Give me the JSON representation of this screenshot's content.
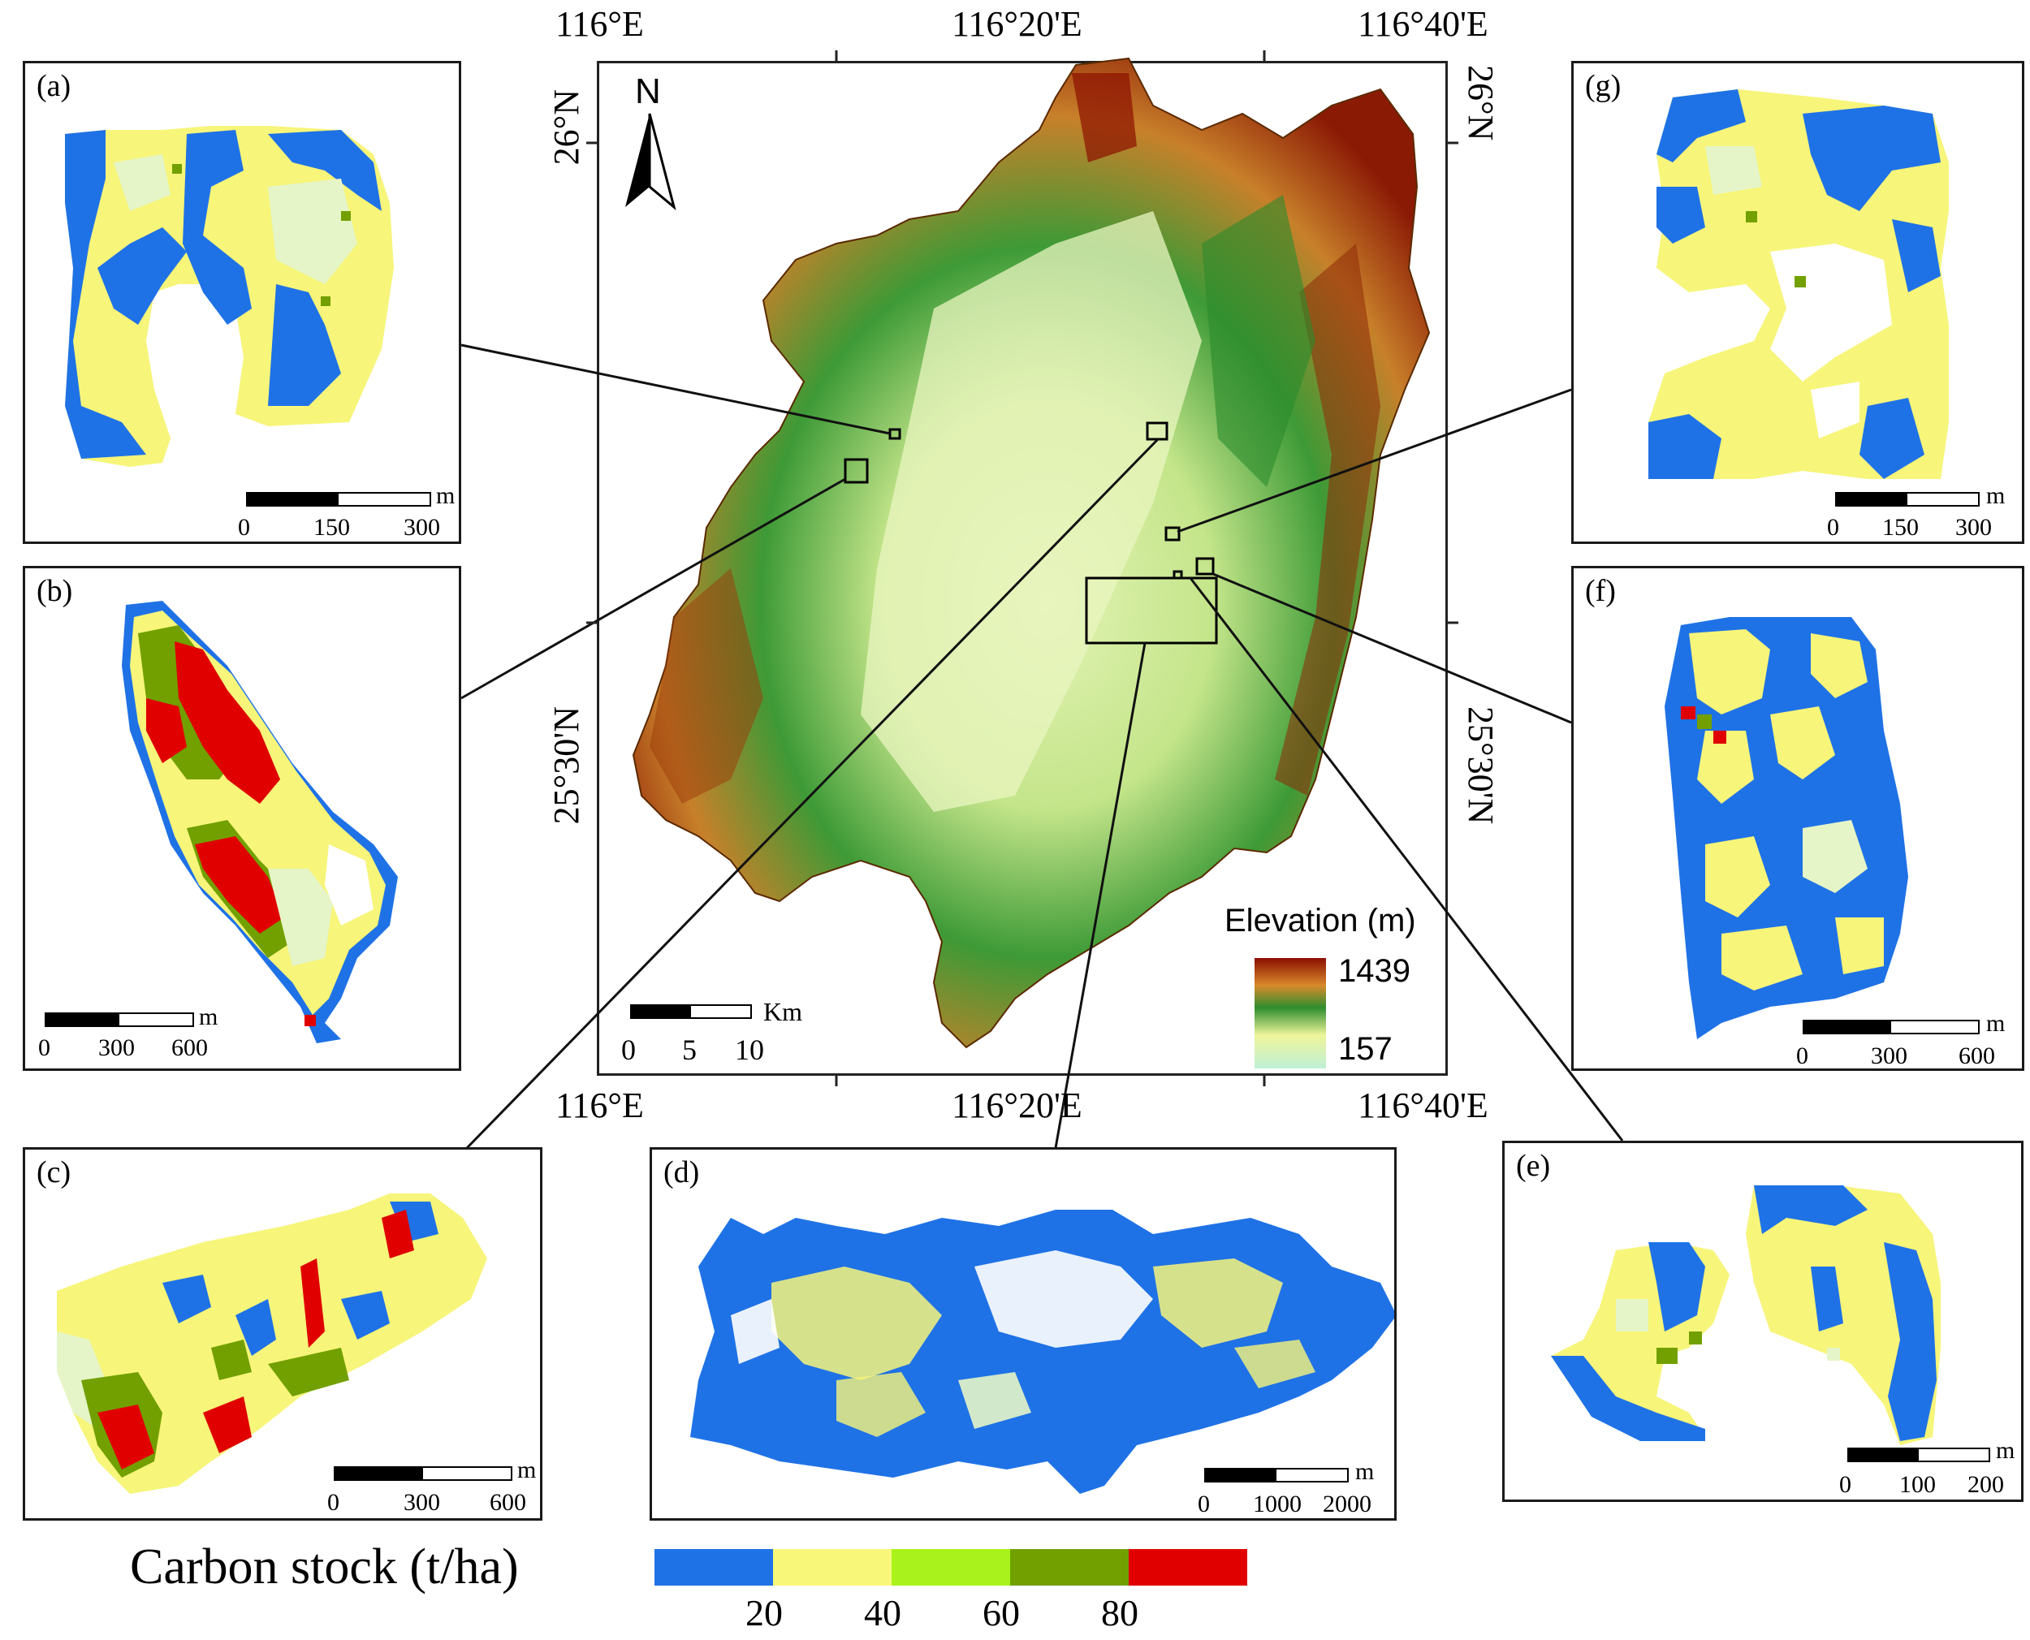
{
  "colors": {
    "class_20": "#1f72e6",
    "class_40": "#f8f77a",
    "class_60": "#a9f21c",
    "class_80": "#72a000",
    "class_top": "#e00000",
    "light": "#e9f6c4",
    "elev_high": "#8b0f00",
    "elev_mid": "#2a8f2a",
    "elev_low": "#bff0d6"
  },
  "main_map": {
    "top_labels": [
      "116°E",
      "116°20'E",
      "116°40'E"
    ],
    "bottom_labels": [
      "116°E",
      "116°20'E",
      "116°40'E"
    ],
    "left_labels": [
      "26°N",
      "25°30'N"
    ],
    "right_labels": [
      "26°N",
      "25°30'N"
    ],
    "north": "N",
    "scale_unit": "Km",
    "scale_ticks": [
      "0",
      "5",
      "10"
    ],
    "legend_title": "Elevation (m)",
    "legend_max": "1439",
    "legend_min": "157"
  },
  "panels": {
    "a": {
      "label": "(a)",
      "unit": "m",
      "ticks": [
        "0",
        "150",
        "300"
      ]
    },
    "b": {
      "label": "(b)",
      "unit": "m",
      "ticks": [
        "0",
        "300",
        "600"
      ]
    },
    "c": {
      "label": "(c)",
      "unit": "m",
      "ticks": [
        "0",
        "300",
        "600"
      ]
    },
    "d": {
      "label": "(d)",
      "unit": "m",
      "ticks": [
        "0",
        "1000",
        "2000"
      ]
    },
    "e": {
      "label": "(e)",
      "unit": "m",
      "ticks": [
        "0",
        "100",
        "200"
      ]
    },
    "f": {
      "label": "(f)",
      "unit": "m",
      "ticks": [
        "0",
        "300",
        "600"
      ]
    },
    "g": {
      "label": "(g)",
      "unit": "m",
      "ticks": [
        "0",
        "150",
        "300"
      ]
    }
  },
  "carbon_legend": {
    "title": "Carbon stock (t/ha)",
    "breaks": [
      "20",
      "40",
      "60",
      "80"
    ]
  }
}
